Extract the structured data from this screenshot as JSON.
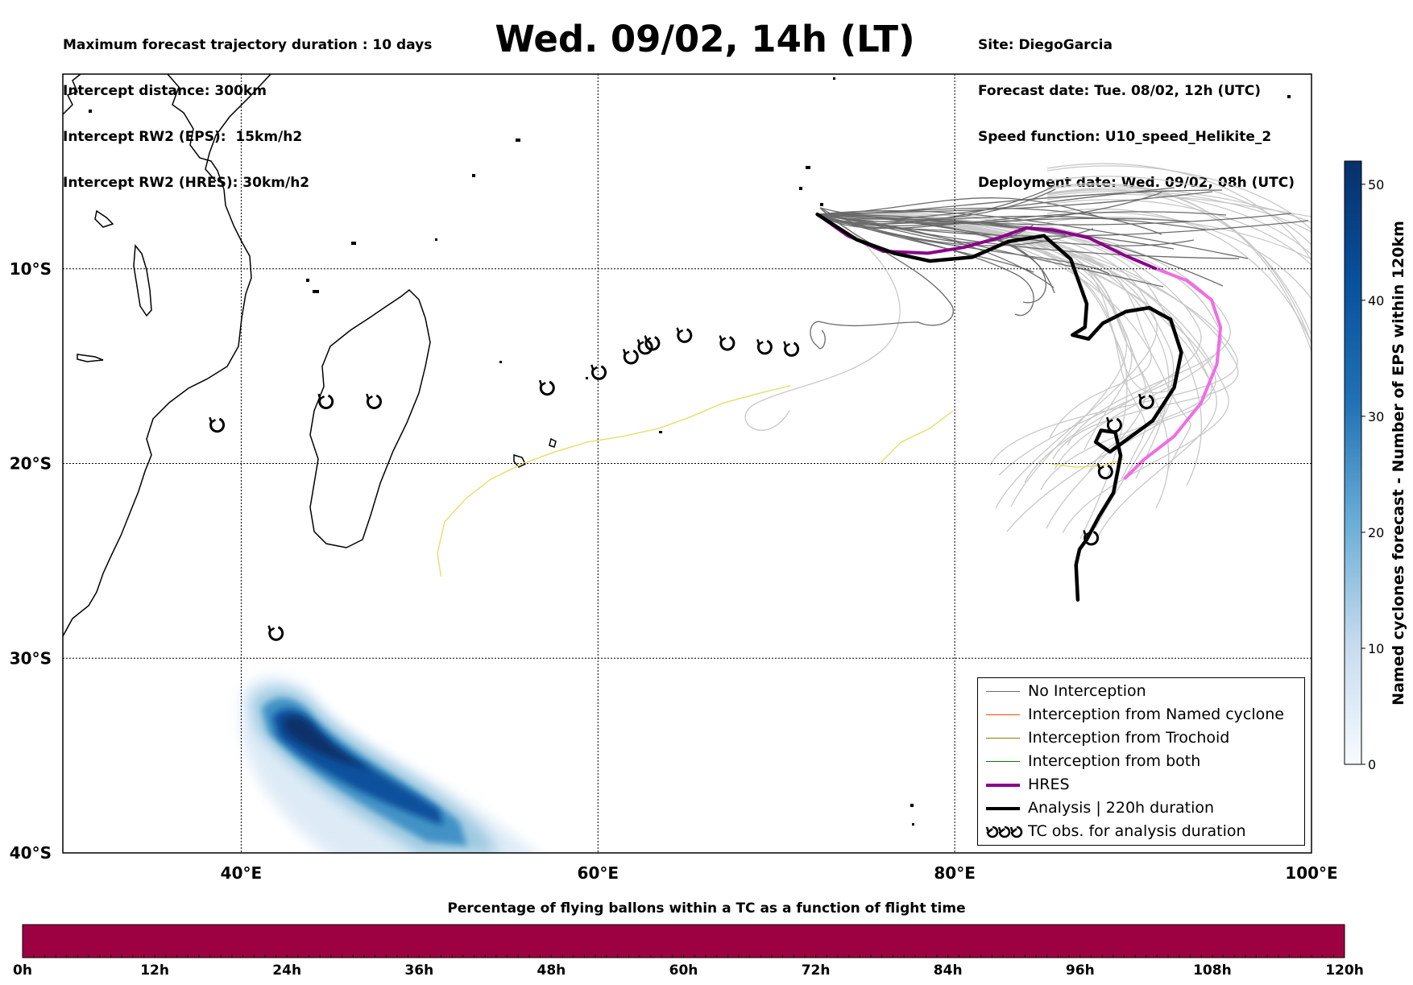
{
  "header": {
    "left_lines": [
      "Maximum forecast trajectory duration : 10 days",
      "Intercept distance: 300km",
      "Intercept RW2 (EPS):  15km/h2",
      "Intercept RW2 (HRES): 30km/h2"
    ],
    "title": "Wed. 09/02, 14h (LT)",
    "right_lines": [
      "Site: DiegoGarcia",
      "Forecast date: Tue. 08/02, 12h (UTC)",
      "Speed function: U10_speed_Helikite_2",
      "Deployment date: Wed. 09/02, 08h (UTC)"
    ]
  },
  "map": {
    "lon_range": [
      30,
      100
    ],
    "lat_range": [
      -40,
      0
    ],
    "lon_ticks": [
      {
        "value": 40,
        "label": "40°E"
      },
      {
        "value": 60,
        "label": "60°E"
      },
      {
        "value": 80,
        "label": "80°E"
      },
      {
        "value": 100,
        "label": "100°E"
      }
    ],
    "lat_ticks": [
      {
        "value": -10,
        "label": "10°S"
      },
      {
        "value": -20,
        "label": "20°S"
      },
      {
        "value": -30,
        "label": "30°S"
      },
      {
        "value": -40,
        "label": "40°S"
      }
    ],
    "colors": {
      "no_interception": "#6b6b6b",
      "light_members": "#c8c8c8",
      "named_cyclone": "#ff4500",
      "trochoid": "#808000",
      "both": "#008000",
      "hres": "#8b008b",
      "hres_late": "#ee6ee6",
      "analysis": "#000000",
      "tc_track": "#e8e070",
      "density": "#08306b"
    },
    "tc_observations_lonlat": [
      [
        38.6,
        -18.0
      ],
      [
        41.9,
        -28.7
      ],
      [
        44.7,
        -16.8
      ],
      [
        47.4,
        -16.8
      ],
      [
        57.1,
        -16.1
      ],
      [
        60.0,
        -15.3
      ],
      [
        61.8,
        -14.5
      ],
      [
        62.6,
        -14.0
      ],
      [
        63.0,
        -13.8
      ],
      [
        64.8,
        -13.4
      ],
      [
        67.2,
        -13.8
      ],
      [
        69.3,
        -14.0
      ],
      [
        70.8,
        -14.1
      ],
      [
        88.4,
        -20.4
      ],
      [
        88.9,
        -18.0
      ],
      [
        90.7,
        -16.8
      ],
      [
        87.6,
        -23.8
      ]
    ],
    "analysis_track_lonlat": [
      [
        72.3,
        -7.2
      ],
      [
        74.5,
        -8.5
      ],
      [
        76.6,
        -9.2
      ],
      [
        78.6,
        -9.6
      ],
      [
        81.0,
        -9.4
      ],
      [
        83.0,
        -8.6
      ],
      [
        85.0,
        -8.3
      ],
      [
        86.5,
        -9.5
      ],
      [
        87.4,
        -11.8
      ],
      [
        87.3,
        -13.0
      ],
      [
        86.6,
        -13.4
      ],
      [
        87.5,
        -13.6
      ],
      [
        88.3,
        -12.8
      ],
      [
        89.6,
        -12.2
      ],
      [
        90.9,
        -12.0
      ],
      [
        92.1,
        -12.6
      ],
      [
        92.7,
        -14.3
      ],
      [
        92.3,
        -16.1
      ],
      [
        91.1,
        -17.8
      ],
      [
        89.9,
        -18.6
      ],
      [
        88.7,
        -19.4
      ],
      [
        87.9,
        -18.9
      ],
      [
        88.2,
        -18.3
      ],
      [
        89.0,
        -18.4
      ],
      [
        89.3,
        -19.6
      ],
      [
        88.9,
        -21.5
      ],
      [
        88.1,
        -22.7
      ],
      [
        87.4,
        -23.9
      ],
      [
        87.0,
        -24.4
      ],
      [
        86.8,
        -25.2
      ],
      [
        86.9,
        -27.0
      ]
    ],
    "hres_track_lonlat": [
      [
        72.3,
        -7.2
      ],
      [
        74.0,
        -8.3
      ],
      [
        76.0,
        -9.1
      ],
      [
        78.5,
        -9.2
      ],
      [
        80.5,
        -8.9
      ],
      [
        82.5,
        -8.4
      ],
      [
        84.0,
        -7.9
      ],
      [
        85.5,
        -8.0
      ],
      [
        87.5,
        -8.4
      ],
      [
        89.5,
        -9.3
      ],
      [
        91.3,
        -10.0
      ]
    ],
    "hres_late_track_lonlat": [
      [
        91.3,
        -10.0
      ],
      [
        93.0,
        -10.6
      ],
      [
        94.4,
        -11.6
      ],
      [
        94.9,
        -13.0
      ],
      [
        94.7,
        -14.9
      ],
      [
        93.8,
        -16.9
      ],
      [
        92.3,
        -18.6
      ],
      [
        90.6,
        -19.8
      ],
      [
        89.5,
        -20.8
      ]
    ],
    "tc_track_lonlat": [
      [
        51.2,
        -25.8
      ],
      [
        51.0,
        -24.6
      ],
      [
        51.4,
        -23.0
      ],
      [
        52.6,
        -21.8
      ],
      [
        54.0,
        -20.8
      ],
      [
        55.8,
        -20.0
      ],
      [
        57.6,
        -19.4
      ],
      [
        59.4,
        -18.9
      ],
      [
        61.4,
        -18.6
      ],
      [
        63.4,
        -18.2
      ],
      [
        65.2,
        -17.6
      ],
      [
        67.0,
        -16.9
      ],
      [
        69.0,
        -16.4
      ],
      [
        70.8,
        -16.0
      ]
    ],
    "tc_track2_lonlat": [
      [
        75.8,
        -20.0
      ],
      [
        77.0,
        -18.9
      ],
      [
        78.6,
        -18.2
      ],
      [
        79.9,
        -17.3
      ]
    ]
  },
  "legend": {
    "items": [
      {
        "label": "No Interception",
        "color": "#6b6b6b",
        "width": 1.5
      },
      {
        "label": "Interception from Named cyclone",
        "color": "#ff4500",
        "width": 1.5
      },
      {
        "label": "Interception from Trochoid",
        "color": "#808000",
        "width": 1.5
      },
      {
        "label": "Interception from both",
        "color": "#008000",
        "width": 1.5
      },
      {
        "label": "HRES",
        "color": "#8b008b",
        "width": 4
      },
      {
        "label": "Analysis | 220h duration",
        "color": "#000000",
        "width": 4
      },
      {
        "label": "TC obs. for analysis duration",
        "color": "",
        "width": 0
      }
    ]
  },
  "colorbar_right": {
    "title": "Named cyclones forecast - Number of EPS within 120km",
    "min": 0,
    "max": 52,
    "ticks": [
      "0",
      "10",
      "20",
      "30",
      "40",
      "50"
    ]
  },
  "colorbar_bottom": {
    "title": "Percentage of flying ballons within a TC as a function of flight time",
    "color": "#9e0142",
    "ticks": [
      "0h",
      "12h",
      "24h",
      "36h",
      "48h",
      "60h",
      "72h",
      "84h",
      "96h",
      "108h",
      "120h"
    ]
  }
}
